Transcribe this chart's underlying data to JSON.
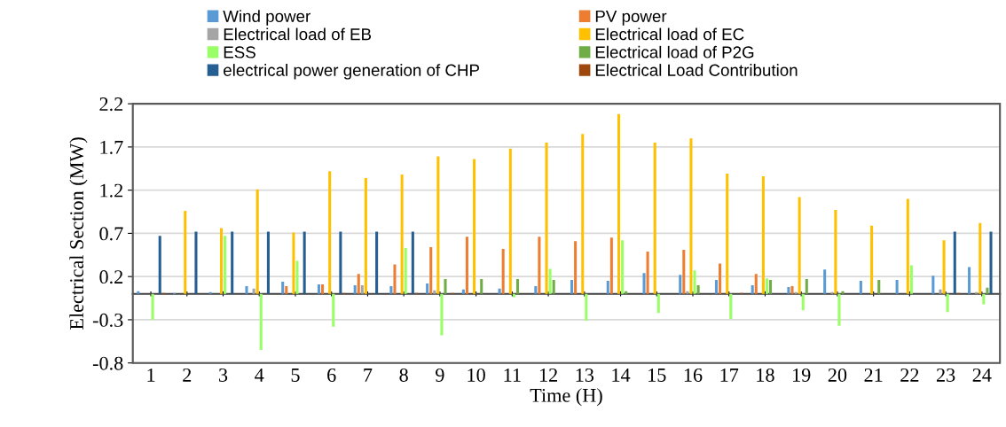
{
  "chart_data": {
    "type": "bar",
    "xlabel": "Time (H)",
    "ylabel": "Electrical Section (MW)",
    "categories": [
      "1",
      "2",
      "3",
      "4",
      "5",
      "6",
      "7",
      "8",
      "9",
      "10",
      "11",
      "12",
      "13",
      "14",
      "15",
      "16",
      "17",
      "18",
      "19",
      "20",
      "21",
      "22",
      "23",
      "24"
    ],
    "ylim": [
      -0.8,
      2.2
    ],
    "yticks": [
      -0.8,
      -0.3,
      0.2,
      0.7,
      1.2,
      1.7,
      2.2
    ],
    "grid": "y",
    "legend": "top",
    "series": [
      {
        "name": "Wind power",
        "color": "#5b9bd5",
        "values": [
          0.03,
          0.01,
          0.02,
          0.09,
          0.14,
          0.11,
          0.1,
          0.09,
          0.12,
          0.05,
          0.06,
          0.09,
          0.16,
          0.15,
          0.24,
          0.22,
          0.16,
          0.1,
          0.08,
          0.28,
          0.15,
          0.16,
          0.21,
          0.31
        ]
      },
      {
        "name": "PV power",
        "color": "#ed7d31",
        "values": [
          0,
          0,
          0,
          0,
          0.09,
          0.11,
          0.23,
          0.34,
          0.54,
          0.66,
          0.52,
          0.66,
          0.61,
          0.65,
          0.49,
          0.51,
          0.35,
          0.23,
          0.09,
          0,
          0,
          0,
          0,
          0
        ]
      },
      {
        "name": "Electrical load of EB",
        "color": "#a5a5a5",
        "values": [
          0,
          0,
          0,
          0.06,
          0,
          0,
          0.1,
          0,
          0.04,
          0,
          0,
          0,
          0,
          0,
          0,
          0.03,
          0,
          0,
          0.02,
          0.02,
          0,
          null,
          0.05,
          0.02
        ]
      },
      {
        "name": "Electrical load of EC",
        "color": "#ffc000",
        "values": [
          0,
          0.96,
          0.76,
          1.21,
          0.71,
          1.42,
          1.34,
          1.38,
          1.59,
          1.56,
          1.68,
          1.75,
          1.85,
          2.08,
          1.75,
          1.8,
          1.39,
          1.36,
          1.12,
          0.97,
          0.79,
          1.1,
          0.62,
          0.82
        ]
      },
      {
        "name": "ESS",
        "color": "#99ff66",
        "values": [
          -0.3,
          0,
          0.67,
          -0.65,
          0.38,
          -0.38,
          0,
          0.53,
          -0.48,
          0,
          -0.04,
          0.29,
          -0.31,
          0.62,
          -0.22,
          0.27,
          -0.29,
          0.18,
          -0.19,
          -0.37,
          0,
          0.33,
          -0.21,
          -0.12
        ]
      },
      {
        "name": "Electrical load of P2G",
        "color": "#70ad47",
        "values": [
          0,
          0,
          0,
          0,
          0,
          0,
          0,
          0,
          0.17,
          0.17,
          0.17,
          0.16,
          0,
          0.03,
          0,
          0.1,
          0,
          0.16,
          0.17,
          0.03,
          0.16,
          0,
          0,
          0.07
        ]
      },
      {
        "name": "electrical power generation of CHP",
        "color": "#255e91",
        "values": [
          0.67,
          0.72,
          0.72,
          0.72,
          0.72,
          0.72,
          0.72,
          0.72,
          0,
          0,
          0,
          0,
          0,
          0,
          0,
          0,
          0,
          0,
          0,
          0,
          0,
          0,
          0.72,
          0.72
        ]
      },
      {
        "name": "Electrical Load Contribution",
        "color": "#9e480e",
        "values": [
          0.01,
          0,
          0,
          0,
          0,
          0.01,
          0,
          0.01,
          0.01,
          0,
          0,
          0,
          0,
          0,
          0,
          0,
          0.01,
          0,
          0,
          0,
          0,
          0,
          0.01,
          0
        ]
      }
    ]
  }
}
